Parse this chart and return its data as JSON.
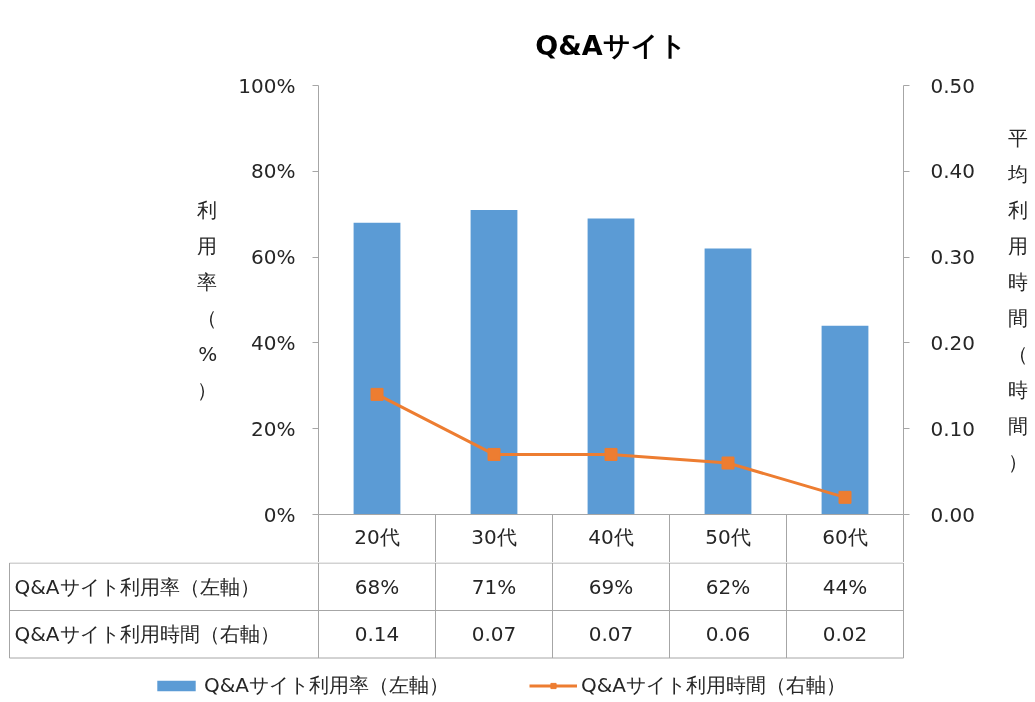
{
  "chart_data": {
    "type": "bar",
    "title": "Q&Aサイト",
    "categories": [
      "20代",
      "30代",
      "40代",
      "50代",
      "60代"
    ],
    "series": [
      {
        "name": "Q&Aサイト利用率（左軸）",
        "color": "#5b9bd5",
        "values": [
          68,
          71,
          69,
          62,
          44
        ],
        "value_labels": [
          "68%",
          "71%",
          "69%",
          "62%",
          "44%"
        ]
      },
      {
        "name": "Q&Aサイト利用時間（右軸）",
        "type": "line",
        "axis": "y2",
        "color": "#ed7d31",
        "marker": "square",
        "line_style": "solid",
        "values": [
          0.14,
          0.07,
          0.07,
          0.06,
          0.02
        ],
        "value_labels": [
          "0.14",
          "0.07",
          "0.07",
          "0.06",
          "0.02"
        ]
      }
    ],
    "ylabel": "利用率（%）",
    "y2label": "平均利用時間（時間）",
    "ylim": [
      0,
      100
    ],
    "yticks": [
      {
        "value": 0,
        "label": "0%"
      },
      {
        "value": 20,
        "label": "20%"
      },
      {
        "value": 40,
        "label": "40%"
      },
      {
        "value": 60,
        "label": "60%"
      },
      {
        "value": 80,
        "label": "80%"
      },
      {
        "value": 100,
        "label": "100%"
      }
    ],
    "y2lim": [
      0,
      0.5
    ],
    "y2ticks": [
      {
        "value": 0,
        "label": "0.00"
      },
      {
        "value": 0.1,
        "label": "0.10"
      },
      {
        "value": 0.2,
        "label": "0.20"
      },
      {
        "value": 0.3,
        "label": "0.30"
      },
      {
        "value": 0.4,
        "label": "0.40"
      },
      {
        "value": 0.5,
        "label": "0.50"
      }
    ],
    "legend": "bottom"
  }
}
